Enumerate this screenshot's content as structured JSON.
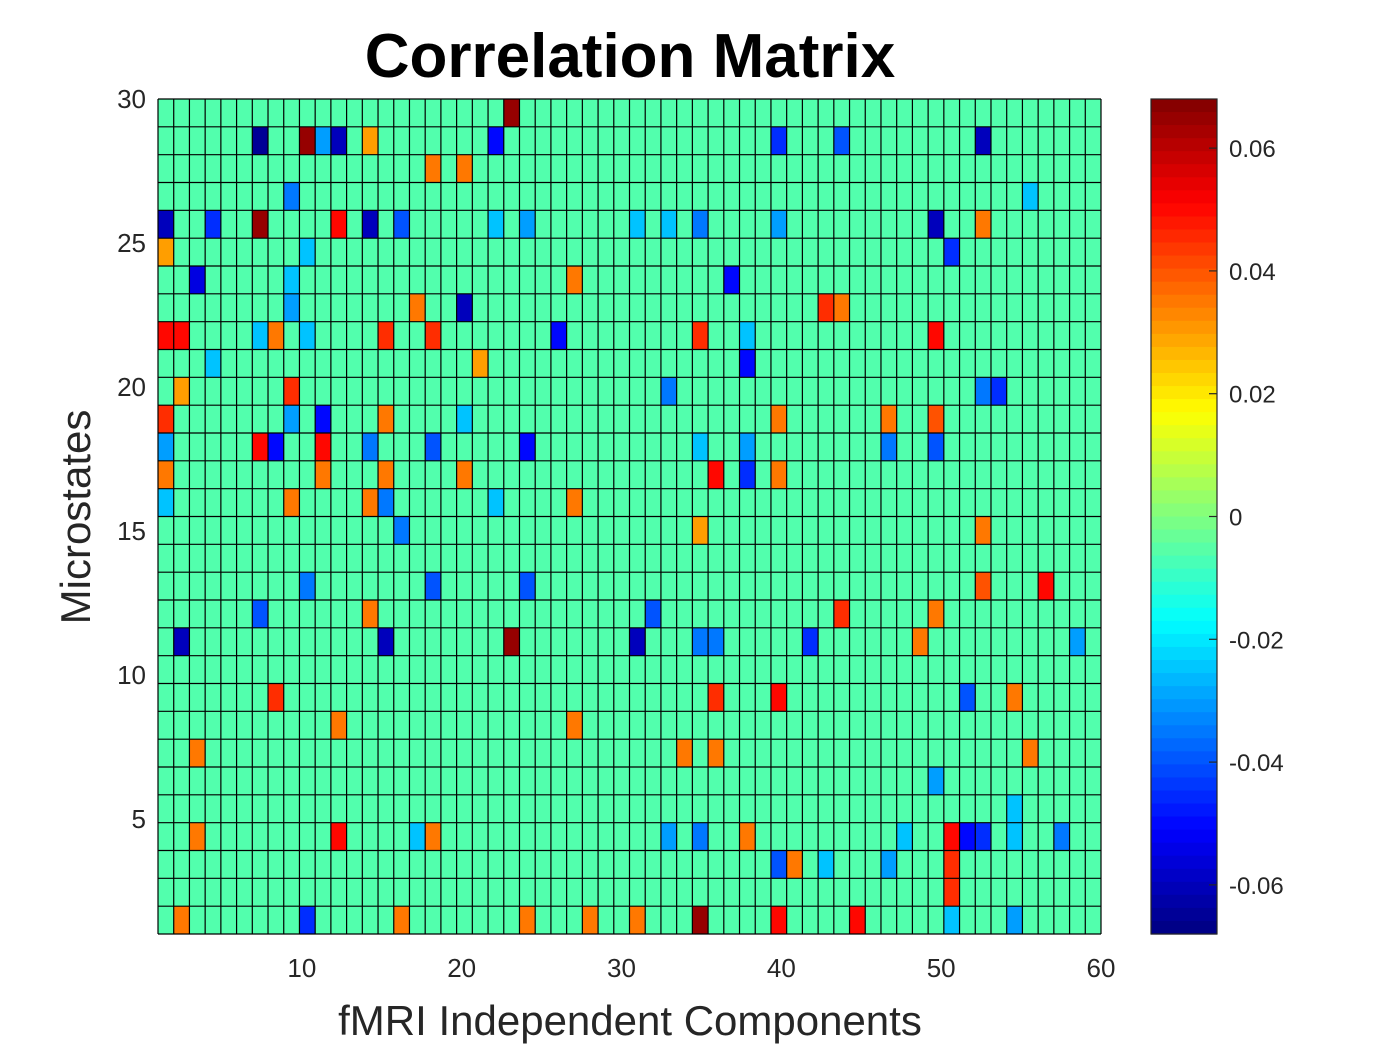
{
  "chart_data": {
    "type": "heatmap",
    "title": "Correlation Matrix",
    "xlabel": "fMRI Independent Components",
    "ylabel": "Microstates",
    "x_range": [
      1,
      60
    ],
    "y_range": [
      1,
      30
    ],
    "x_ticks": [
      10,
      20,
      30,
      40,
      50,
      60
    ],
    "y_ticks": [
      5,
      10,
      15,
      20,
      25,
      30
    ],
    "colormap": "jet",
    "grid": true,
    "colorbar": {
      "range": [
        -0.068,
        0.068
      ],
      "ticks": [
        0.06,
        0.04,
        0.02,
        0,
        -0.02,
        -0.04,
        -0.06
      ],
      "tick_labels": [
        "0.06",
        "0.04",
        "0.02",
        "0",
        "-0.02",
        "-0.04",
        "-0.06"
      ],
      "placement": "right"
    },
    "background_value": -0.006,
    "cells": [
      {
        "x": 23,
        "y": 30,
        "v": 0.065
      },
      {
        "x": 7,
        "y": 29,
        "v": -0.065
      },
      {
        "x": 10,
        "y": 29,
        "v": 0.065
      },
      {
        "x": 11,
        "y": 29,
        "v": -0.03
      },
      {
        "x": 12,
        "y": 29,
        "v": -0.06
      },
      {
        "x": 14,
        "y": 29,
        "v": 0.03
      },
      {
        "x": 22,
        "y": 29,
        "v": -0.05
      },
      {
        "x": 40,
        "y": 29,
        "v": -0.045
      },
      {
        "x": 44,
        "y": 29,
        "v": -0.04
      },
      {
        "x": 53,
        "y": 29,
        "v": -0.06
      },
      {
        "x": 18,
        "y": 28,
        "v": 0.035
      },
      {
        "x": 20,
        "y": 28,
        "v": 0.035
      },
      {
        "x": 9,
        "y": 27,
        "v": -0.035
      },
      {
        "x": 56,
        "y": 27,
        "v": -0.025
      },
      {
        "x": 1,
        "y": 26,
        "v": -0.06
      },
      {
        "x": 4,
        "y": 26,
        "v": -0.045
      },
      {
        "x": 7,
        "y": 26,
        "v": 0.065
      },
      {
        "x": 12,
        "y": 26,
        "v": 0.05
      },
      {
        "x": 14,
        "y": 26,
        "v": -0.06
      },
      {
        "x": 16,
        "y": 26,
        "v": -0.04
      },
      {
        "x": 22,
        "y": 26,
        "v": -0.025
      },
      {
        "x": 24,
        "y": 26,
        "v": -0.03
      },
      {
        "x": 31,
        "y": 26,
        "v": -0.025
      },
      {
        "x": 33,
        "y": 26,
        "v": -0.025
      },
      {
        "x": 35,
        "y": 26,
        "v": -0.035
      },
      {
        "x": 40,
        "y": 26,
        "v": -0.03
      },
      {
        "x": 50,
        "y": 26,
        "v": -0.06
      },
      {
        "x": 53,
        "y": 26,
        "v": 0.035
      },
      {
        "x": 1,
        "y": 25,
        "v": 0.03
      },
      {
        "x": 10,
        "y": 25,
        "v": -0.025
      },
      {
        "x": 51,
        "y": 25,
        "v": -0.045
      },
      {
        "x": 3,
        "y": 24,
        "v": -0.055
      },
      {
        "x": 9,
        "y": 24,
        "v": -0.025
      },
      {
        "x": 27,
        "y": 24,
        "v": 0.035
      },
      {
        "x": 37,
        "y": 24,
        "v": -0.05
      },
      {
        "x": 9,
        "y": 23,
        "v": -0.03
      },
      {
        "x": 17,
        "y": 23,
        "v": 0.035
      },
      {
        "x": 20,
        "y": 23,
        "v": -0.06
      },
      {
        "x": 43,
        "y": 23,
        "v": 0.045
      },
      {
        "x": 44,
        "y": 23,
        "v": 0.035
      },
      {
        "x": 1,
        "y": 22,
        "v": 0.05
      },
      {
        "x": 2,
        "y": 22,
        "v": 0.05
      },
      {
        "x": 7,
        "y": 22,
        "v": -0.025
      },
      {
        "x": 8,
        "y": 22,
        "v": 0.035
      },
      {
        "x": 10,
        "y": 22,
        "v": -0.025
      },
      {
        "x": 15,
        "y": 22,
        "v": 0.045
      },
      {
        "x": 18,
        "y": 22,
        "v": 0.045
      },
      {
        "x": 26,
        "y": 22,
        "v": -0.05
      },
      {
        "x": 35,
        "y": 22,
        "v": 0.045
      },
      {
        "x": 38,
        "y": 22,
        "v": -0.025
      },
      {
        "x": 50,
        "y": 22,
        "v": 0.05
      },
      {
        "x": 4,
        "y": 21,
        "v": -0.025
      },
      {
        "x": 21,
        "y": 21,
        "v": 0.03
      },
      {
        "x": 38,
        "y": 21,
        "v": -0.05
      },
      {
        "x": 2,
        "y": 20,
        "v": 0.03
      },
      {
        "x": 9,
        "y": 20,
        "v": 0.045
      },
      {
        "x": 33,
        "y": 20,
        "v": -0.035
      },
      {
        "x": 53,
        "y": 20,
        "v": -0.035
      },
      {
        "x": 54,
        "y": 20,
        "v": -0.045
      },
      {
        "x": 1,
        "y": 19,
        "v": 0.045
      },
      {
        "x": 9,
        "y": 19,
        "v": -0.03
      },
      {
        "x": 11,
        "y": 19,
        "v": -0.05
      },
      {
        "x": 15,
        "y": 19,
        "v": 0.035
      },
      {
        "x": 20,
        "y": 19,
        "v": -0.025
      },
      {
        "x": 40,
        "y": 19,
        "v": 0.035
      },
      {
        "x": 47,
        "y": 19,
        "v": 0.035
      },
      {
        "x": 50,
        "y": 19,
        "v": 0.04
      },
      {
        "x": 1,
        "y": 18,
        "v": -0.03
      },
      {
        "x": 7,
        "y": 18,
        "v": 0.05
      },
      {
        "x": 8,
        "y": 18,
        "v": -0.05
      },
      {
        "x": 11,
        "y": 18,
        "v": 0.05
      },
      {
        "x": 14,
        "y": 18,
        "v": -0.035
      },
      {
        "x": 18,
        "y": 18,
        "v": -0.04
      },
      {
        "x": 24,
        "y": 18,
        "v": -0.05
      },
      {
        "x": 35,
        "y": 18,
        "v": -0.025
      },
      {
        "x": 38,
        "y": 18,
        "v": -0.03
      },
      {
        "x": 47,
        "y": 18,
        "v": -0.035
      },
      {
        "x": 50,
        "y": 18,
        "v": -0.04
      },
      {
        "x": 1,
        "y": 17,
        "v": 0.035
      },
      {
        "x": 11,
        "y": 17,
        "v": 0.035
      },
      {
        "x": 15,
        "y": 17,
        "v": 0.035
      },
      {
        "x": 20,
        "y": 17,
        "v": 0.035
      },
      {
        "x": 36,
        "y": 17,
        "v": 0.05
      },
      {
        "x": 38,
        "y": 17,
        "v": -0.045
      },
      {
        "x": 40,
        "y": 17,
        "v": 0.035
      },
      {
        "x": 1,
        "y": 16,
        "v": -0.025
      },
      {
        "x": 9,
        "y": 16,
        "v": 0.035
      },
      {
        "x": 14,
        "y": 16,
        "v": 0.035
      },
      {
        "x": 15,
        "y": 16,
        "v": -0.035
      },
      {
        "x": 22,
        "y": 16,
        "v": -0.025
      },
      {
        "x": 27,
        "y": 16,
        "v": 0.035
      },
      {
        "x": 16,
        "y": 15,
        "v": -0.035
      },
      {
        "x": 35,
        "y": 15,
        "v": 0.03
      },
      {
        "x": 53,
        "y": 15,
        "v": 0.035
      },
      {
        "x": 10,
        "y": 13,
        "v": -0.035
      },
      {
        "x": 18,
        "y": 13,
        "v": -0.04
      },
      {
        "x": 24,
        "y": 13,
        "v": -0.04
      },
      {
        "x": 53,
        "y": 13,
        "v": 0.04
      },
      {
        "x": 57,
        "y": 13,
        "v": 0.05
      },
      {
        "x": 7,
        "y": 12,
        "v": -0.04
      },
      {
        "x": 14,
        "y": 12,
        "v": 0.035
      },
      {
        "x": 32,
        "y": 12,
        "v": -0.04
      },
      {
        "x": 44,
        "y": 12,
        "v": 0.045
      },
      {
        "x": 50,
        "y": 12,
        "v": 0.035
      },
      {
        "x": 2,
        "y": 11,
        "v": -0.06
      },
      {
        "x": 15,
        "y": 11,
        "v": -0.06
      },
      {
        "x": 23,
        "y": 11,
        "v": 0.065
      },
      {
        "x": 31,
        "y": 11,
        "v": -0.06
      },
      {
        "x": 35,
        "y": 11,
        "v": -0.035
      },
      {
        "x": 36,
        "y": 11,
        "v": -0.035
      },
      {
        "x": 42,
        "y": 11,
        "v": -0.045
      },
      {
        "x": 49,
        "y": 11,
        "v": 0.035
      },
      {
        "x": 59,
        "y": 11,
        "v": -0.03
      },
      {
        "x": 8,
        "y": 9,
        "v": 0.045
      },
      {
        "x": 36,
        "y": 9,
        "v": 0.045
      },
      {
        "x": 40,
        "y": 9,
        "v": 0.05
      },
      {
        "x": 52,
        "y": 9,
        "v": -0.04
      },
      {
        "x": 55,
        "y": 9,
        "v": 0.035
      },
      {
        "x": 12,
        "y": 8,
        "v": 0.035
      },
      {
        "x": 27,
        "y": 8,
        "v": 0.035
      },
      {
        "x": 3,
        "y": 7,
        "v": 0.035
      },
      {
        "x": 34,
        "y": 7,
        "v": 0.035
      },
      {
        "x": 36,
        "y": 7,
        "v": 0.035
      },
      {
        "x": 56,
        "y": 7,
        "v": 0.035
      },
      {
        "x": 50,
        "y": 6,
        "v": -0.03
      },
      {
        "x": 55,
        "y": 5,
        "v": -0.025
      },
      {
        "x": 3,
        "y": 4,
        "v": 0.035
      },
      {
        "x": 12,
        "y": 4,
        "v": 0.05
      },
      {
        "x": 17,
        "y": 4,
        "v": -0.025
      },
      {
        "x": 18,
        "y": 4,
        "v": 0.035
      },
      {
        "x": 33,
        "y": 4,
        "v": -0.03
      },
      {
        "x": 35,
        "y": 4,
        "v": -0.035
      },
      {
        "x": 38,
        "y": 4,
        "v": 0.035
      },
      {
        "x": 48,
        "y": 4,
        "v": -0.025
      },
      {
        "x": 51,
        "y": 4,
        "v": 0.05
      },
      {
        "x": 52,
        "y": 4,
        "v": -0.05
      },
      {
        "x": 53,
        "y": 4,
        "v": -0.045
      },
      {
        "x": 55,
        "y": 4,
        "v": -0.025
      },
      {
        "x": 58,
        "y": 4,
        "v": -0.035
      },
      {
        "x": 40,
        "y": 3,
        "v": -0.04
      },
      {
        "x": 41,
        "y": 3,
        "v": 0.035
      },
      {
        "x": 43,
        "y": 3,
        "v": -0.025
      },
      {
        "x": 47,
        "y": 3,
        "v": -0.03
      },
      {
        "x": 51,
        "y": 3,
        "v": 0.045
      },
      {
        "x": 51,
        "y": 2,
        "v": 0.045
      },
      {
        "x": 2,
        "y": 1,
        "v": 0.035
      },
      {
        "x": 10,
        "y": 1,
        "v": -0.045
      },
      {
        "x": 16,
        "y": 1,
        "v": 0.035
      },
      {
        "x": 24,
        "y": 1,
        "v": 0.035
      },
      {
        "x": 28,
        "y": 1,
        "v": 0.035
      },
      {
        "x": 31,
        "y": 1,
        "v": 0.035
      },
      {
        "x": 35,
        "y": 1,
        "v": 0.065
      },
      {
        "x": 40,
        "y": 1,
        "v": 0.05
      },
      {
        "x": 45,
        "y": 1,
        "v": 0.05
      },
      {
        "x": 51,
        "y": 1,
        "v": -0.025
      },
      {
        "x": 55,
        "y": 1,
        "v": -0.03
      }
    ]
  }
}
